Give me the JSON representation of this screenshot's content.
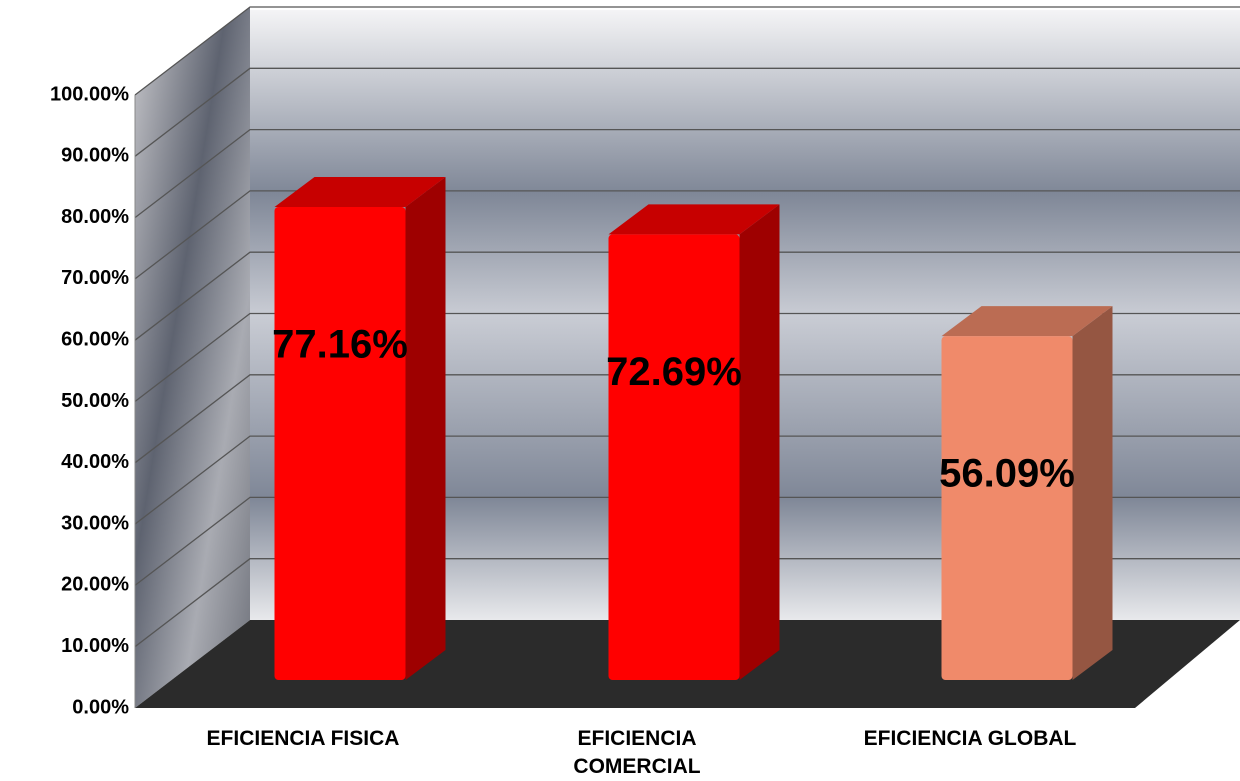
{
  "chart_data": {
    "type": "bar3d",
    "categories": [
      "EFICIENCIA FISICA",
      "EFICIENCIA COMERCIAL",
      "EFICIENCIA GLOBAL"
    ],
    "values": [
      77.16,
      72.69,
      56.09
    ],
    "value_labels": [
      "77.16%",
      "72.69%",
      "56.09%"
    ],
    "colors": [
      "#ff0000",
      "#ff0000",
      "#f08a6a"
    ],
    "ylim": [
      0,
      100
    ],
    "yticks": [
      {
        "value": 0,
        "label": "0.00%"
      },
      {
        "value": 10,
        "label": "10.00%"
      },
      {
        "value": 20,
        "label": "20.00%"
      },
      {
        "value": 30,
        "label": "30.00%"
      },
      {
        "value": 40,
        "label": "40.00%"
      },
      {
        "value": 50,
        "label": "50.00%"
      },
      {
        "value": 60,
        "label": "60.00%"
      },
      {
        "value": 70,
        "label": "70.00%"
      },
      {
        "value": 80,
        "label": "80.00%"
      },
      {
        "value": 90,
        "label": "90.00%"
      },
      {
        "value": 100,
        "label": "100.00%"
      }
    ],
    "grid": true
  }
}
